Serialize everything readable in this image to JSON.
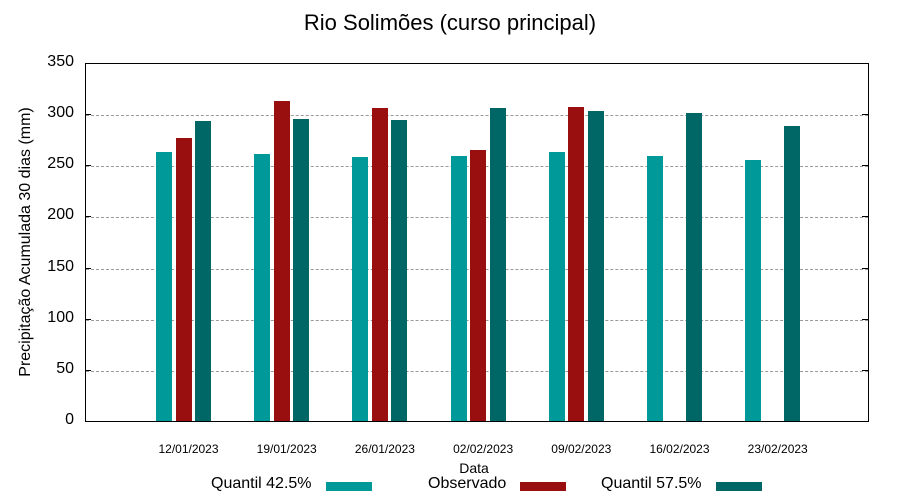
{
  "chart_data": {
    "type": "bar",
    "title": "Rio Solimões (curso principal)",
    "xlabel": "Data",
    "ylabel": "Precipitação Acumulada 30 dias (mm)",
    "ylim": [
      0,
      350
    ],
    "yticks": [
      0,
      50,
      100,
      150,
      200,
      250,
      300,
      350
    ],
    "grid": true,
    "legend_position": "bottom",
    "categories": [
      "12/01/2023",
      "19/01/2023",
      "26/01/2023",
      "02/02/2023",
      "09/02/2023",
      "16/02/2023",
      "23/02/2023"
    ],
    "series": [
      {
        "name": "Quantil 42.5%",
        "color": "#009999",
        "values": [
          263,
          261,
          258,
          259,
          263,
          259,
          255
        ]
      },
      {
        "name": "Observado",
        "color": "#990f0f",
        "values": [
          277,
          313,
          306,
          265,
          307,
          null,
          null
        ]
      },
      {
        "name": "Quantil 57.5%",
        "color": "#006666",
        "values": [
          293,
          295,
          294,
          306,
          303,
          301,
          288
        ]
      }
    ]
  }
}
